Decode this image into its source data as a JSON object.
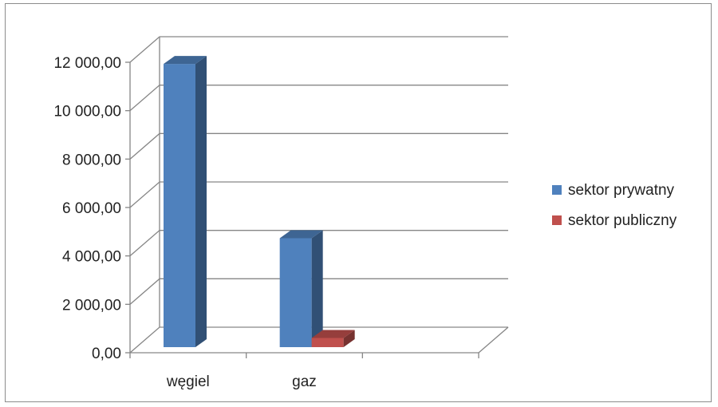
{
  "chart_data": {
    "type": "bar",
    "title": "",
    "xlabel": "",
    "ylabel": "",
    "categories": [
      "węgiel",
      "gaz",
      ""
    ],
    "series": [
      {
        "name": "sektor prywatny",
        "values": [
          11700,
          4500,
          0
        ],
        "color": "#4f81bd"
      },
      {
        "name": "sektor publiczny",
        "values": [
          0,
          380,
          0
        ],
        "color": "#c0504d"
      }
    ],
    "ylim": [
      0,
      12000
    ],
    "yticks": [
      0,
      2000,
      4000,
      6000,
      8000,
      10000,
      12000
    ],
    "ytick_labels": [
      "0,00",
      "2 000,00",
      "4 000,00",
      "6 000,00",
      "8 000,00",
      "10 000,00",
      "12 000,00"
    ],
    "grid": true,
    "legend_position": "right",
    "style": "3d-clustered-column"
  }
}
